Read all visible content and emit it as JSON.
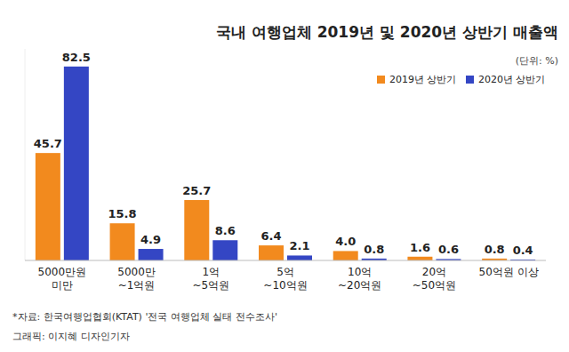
{
  "chart_data": {
    "type": "bar",
    "title": "국내 여행업체 2019년 및 2020년 상반기 매출액",
    "unit_label": "(단위: %)",
    "source": "*자료: 한국여행업협회(KTAT) '전국 여행업체 실태 전수조사'",
    "credit": "그래픽: 이지혜 디자인기자",
    "categories": [
      "5000만원\n미만",
      "5000만\n~1억원",
      "1억\n~5억원",
      "5억\n~10억원",
      "10억\n~20억원",
      "20억\n~50억원",
      "50억원 이상"
    ],
    "series": [
      {
        "name": "2019년 상반기",
        "color": "#f28a1e",
        "values": [
          45.7,
          15.8,
          25.7,
          6.4,
          4.0,
          1.6,
          0.8
        ],
        "value_labels": [
          "45.7",
          "15.8",
          "25.7",
          "6.4",
          "4.0",
          "1.6",
          "0.8"
        ]
      },
      {
        "name": "2020년 상반기",
        "color": "#3446c4",
        "values": [
          82.5,
          4.9,
          8.6,
          2.1,
          0.8,
          0.6,
          0.4
        ]
      }
    ],
    "ylim": [
      0,
      90
    ],
    "tick_labels": "x",
    "data_labels": true,
    "legend": "top-right",
    "grid": false
  }
}
